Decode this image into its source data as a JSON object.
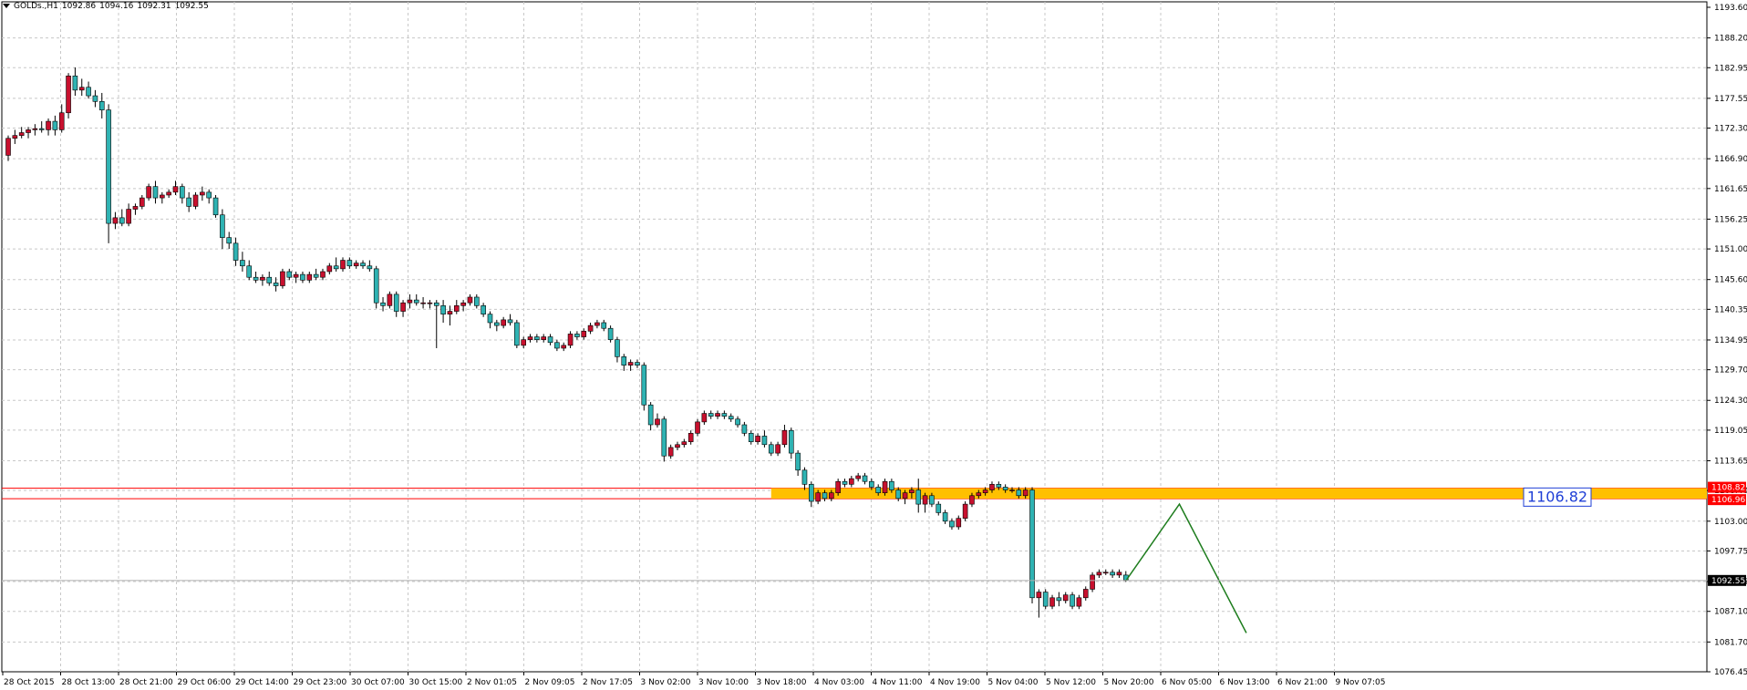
{
  "header": {
    "symbol": "GOLDs.,H1",
    "open": "1092.86",
    "high": "1094.16",
    "low": "1092.31",
    "close": "1092.55"
  },
  "colors": {
    "background": "#ffffff",
    "grid": "#c8c8c8",
    "bull_body": "#c8102e",
    "bear_body": "#2fb3b3",
    "wick": "#000000",
    "zone_fill": "#ffc000",
    "zone_line": "#ff0000",
    "projection": "#1e7d1e",
    "price_tag_bg": "#000000",
    "zone_label": "#1f3fd6"
  },
  "chart_data": {
    "type": "candlestick",
    "title": "GOLDs.,H1",
    "ylim": [
      1076.45,
      1195.0
    ],
    "y_ticks": [
      "1193.60",
      "1188.20",
      "1182.95",
      "1177.55",
      "1172.30",
      "1166.90",
      "1161.65",
      "1156.25",
      "1151.00",
      "1145.60",
      "1140.35",
      "1134.95",
      "1129.70",
      "1124.30",
      "1119.05",
      "1113.65",
      "1108.40",
      "1103.00",
      "1097.75",
      "1092.35",
      "1087.10",
      "1081.70",
      "1076.45"
    ],
    "x_ticks": [
      "28 Oct 2015",
      "28 Oct 13:00",
      "28 Oct 21:00",
      "29 Oct 06:00",
      "29 Oct 14:00",
      "29 Oct 23:00",
      "30 Oct 07:00",
      "30 Oct 15:00",
      "2 Nov 01:05",
      "2 Nov 09:05",
      "2 Nov 17:05",
      "3 Nov 02:00",
      "3 Nov 10:00",
      "3 Nov 18:00",
      "4 Nov 03:00",
      "4 Nov 11:00",
      "4 Nov 19:00",
      "5 Nov 04:00",
      "5 Nov 12:00",
      "5 Nov 20:00",
      "6 Nov 05:00",
      "6 Nov 13:00",
      "6 Nov 21:00",
      "9 Nov 07:05"
    ],
    "current_price": "1092.55",
    "zone": {
      "upper": 1108.82,
      "lower": 1106.96,
      "upper_label": "1108.82",
      "lower_label": "1106.96",
      "label": "1106.82"
    },
    "projection": [
      {
        "bar": 0,
        "price": 1092.5
      },
      {
        "bar": 8,
        "price": 1106.0
      },
      {
        "bar": 18,
        "price": 1083.3
      }
    ],
    "candles": [
      [
        1167.5,
        1171.0,
        1166.5,
        1170.5
      ],
      [
        1170.5,
        1172.0,
        1169.5,
        1171.0
      ],
      [
        1171.0,
        1172.5,
        1170.5,
        1171.5
      ],
      [
        1171.5,
        1172.5,
        1170.5,
        1172.0
      ],
      [
        1172.0,
        1173.0,
        1171.0,
        1172.2
      ],
      [
        1172.2,
        1173.5,
        1171.5,
        1172.0
      ],
      [
        1172.0,
        1174.0,
        1171.0,
        1173.5
      ],
      [
        1173.5,
        1174.5,
        1171.0,
        1172.0
      ],
      [
        1172.0,
        1176.5,
        1171.5,
        1175.0
      ],
      [
        1175.0,
        1182.0,
        1174.0,
        1181.5
      ],
      [
        1181.5,
        1183.0,
        1178.0,
        1179.0
      ],
      [
        1179.0,
        1181.0,
        1178.0,
        1179.5
      ],
      [
        1179.5,
        1180.5,
        1177.5,
        1178.0
      ],
      [
        1178.0,
        1179.0,
        1176.0,
        1177.0
      ],
      [
        1177.0,
        1178.5,
        1174.0,
        1175.5
      ],
      [
        1175.5,
        1176.5,
        1152.0,
        1155.5
      ],
      [
        1155.5,
        1157.5,
        1154.5,
        1156.5
      ],
      [
        1156.5,
        1158.0,
        1155.0,
        1155.5
      ],
      [
        1155.5,
        1159.0,
        1155.0,
        1158.0
      ],
      [
        1158.0,
        1159.0,
        1157.0,
        1158.5
      ],
      [
        1158.5,
        1160.5,
        1158.0,
        1160.0
      ],
      [
        1160.0,
        1162.5,
        1159.5,
        1162.0
      ],
      [
        1162.0,
        1163.0,
        1159.0,
        1160.0
      ],
      [
        1160.0,
        1161.0,
        1159.0,
        1160.5
      ],
      [
        1160.5,
        1161.5,
        1160.0,
        1161.0
      ],
      [
        1161.0,
        1163.0,
        1160.5,
        1162.0
      ],
      [
        1162.0,
        1162.5,
        1159.0,
        1160.0
      ],
      [
        1160.0,
        1161.0,
        1157.5,
        1158.5
      ],
      [
        1158.5,
        1161.0,
        1158.0,
        1160.5
      ],
      [
        1160.5,
        1162.0,
        1159.5,
        1161.0
      ],
      [
        1161.0,
        1161.5,
        1159.0,
        1160.0
      ],
      [
        1160.0,
        1160.5,
        1156.5,
        1157.0
      ],
      [
        1157.0,
        1158.0,
        1151.0,
        1153.0
      ],
      [
        1153.0,
        1154.0,
        1151.0,
        1152.0
      ],
      [
        1152.0,
        1153.0,
        1148.0,
        1149.0
      ],
      [
        1149.0,
        1150.5,
        1147.0,
        1148.0
      ],
      [
        1148.0,
        1149.0,
        1145.5,
        1146.0
      ],
      [
        1146.0,
        1147.0,
        1145.0,
        1145.5
      ],
      [
        1145.5,
        1146.5,
        1144.5,
        1146.0
      ],
      [
        1146.0,
        1147.0,
        1144.5,
        1145.0
      ],
      [
        1145.0,
        1146.0,
        1143.5,
        1144.5
      ],
      [
        1144.5,
        1147.5,
        1144.0,
        1147.0
      ],
      [
        1147.0,
        1147.5,
        1145.5,
        1146.0
      ],
      [
        1146.0,
        1147.0,
        1145.0,
        1146.5
      ],
      [
        1146.5,
        1147.0,
        1145.0,
        1145.5
      ],
      [
        1145.5,
        1147.0,
        1145.0,
        1146.5
      ],
      [
        1146.5,
        1147.5,
        1145.5,
        1146.0
      ],
      [
        1146.0,
        1147.5,
        1145.5,
        1147.0
      ],
      [
        1147.0,
        1148.5,
        1146.5,
        1148.0
      ],
      [
        1148.0,
        1149.5,
        1147.0,
        1147.5
      ],
      [
        1147.5,
        1149.5,
        1147.0,
        1149.0
      ],
      [
        1149.0,
        1149.5,
        1147.5,
        1148.0
      ],
      [
        1148.0,
        1149.0,
        1147.5,
        1148.5
      ],
      [
        1148.5,
        1149.0,
        1147.5,
        1148.0
      ],
      [
        1148.0,
        1149.0,
        1147.0,
        1147.5
      ],
      [
        1147.5,
        1148.0,
        1140.5,
        1141.5
      ],
      [
        1141.5,
        1142.5,
        1140.0,
        1141.0
      ],
      [
        1141.0,
        1143.5,
        1140.5,
        1143.0
      ],
      [
        1143.0,
        1143.5,
        1139.0,
        1140.0
      ],
      [
        1140.0,
        1142.0,
        1139.0,
        1141.5
      ],
      [
        1141.5,
        1143.0,
        1140.5,
        1142.0
      ],
      [
        1142.0,
        1143.0,
        1141.0,
        1141.5
      ],
      [
        1141.5,
        1142.5,
        1140.5,
        1141.5
      ],
      [
        1141.5,
        1142.0,
        1140.5,
        1141.5
      ],
      [
        1141.5,
        1142.0,
        1133.5,
        1141.0
      ],
      [
        1141.0,
        1142.0,
        1138.0,
        1139.5
      ],
      [
        1139.5,
        1141.0,
        1137.5,
        1140.0
      ],
      [
        1140.0,
        1142.0,
        1139.5,
        1141.0
      ],
      [
        1141.0,
        1142.0,
        1140.0,
        1141.5
      ],
      [
        1141.5,
        1143.0,
        1141.0,
        1142.5
      ],
      [
        1142.5,
        1143.0,
        1140.5,
        1141.0
      ],
      [
        1141.0,
        1141.5,
        1139.0,
        1139.5
      ],
      [
        1139.5,
        1140.0,
        1137.0,
        1138.0
      ],
      [
        1138.0,
        1138.5,
        1136.5,
        1137.5
      ],
      [
        1137.5,
        1139.0,
        1137.0,
        1138.5
      ],
      [
        1138.5,
        1139.5,
        1137.5,
        1138.0
      ],
      [
        1138.0,
        1138.5,
        1133.5,
        1134.0
      ],
      [
        1134.0,
        1135.5,
        1133.5,
        1135.0
      ],
      [
        1135.0,
        1136.0,
        1134.5,
        1135.5
      ],
      [
        1135.5,
        1136.0,
        1134.5,
        1135.0
      ],
      [
        1135.0,
        1136.0,
        1134.5,
        1135.5
      ],
      [
        1135.5,
        1136.0,
        1134.0,
        1134.5
      ],
      [
        1134.5,
        1135.0,
        1133.0,
        1133.5
      ],
      [
        1133.5,
        1134.5,
        1133.0,
        1134.0
      ],
      [
        1134.0,
        1136.5,
        1133.5,
        1136.0
      ],
      [
        1136.0,
        1136.5,
        1135.0,
        1135.5
      ],
      [
        1135.5,
        1137.0,
        1135.0,
        1136.5
      ],
      [
        1136.5,
        1138.0,
        1136.0,
        1137.5
      ],
      [
        1137.5,
        1138.5,
        1137.0,
        1138.0
      ],
      [
        1138.0,
        1138.5,
        1136.5,
        1137.0
      ],
      [
        1137.0,
        1137.5,
        1134.5,
        1135.0
      ],
      [
        1135.0,
        1135.5,
        1131.0,
        1132.0
      ],
      [
        1132.0,
        1132.5,
        1129.5,
        1130.5
      ],
      [
        1130.5,
        1131.5,
        1129.5,
        1131.0
      ],
      [
        1131.0,
        1131.5,
        1130.0,
        1130.5
      ],
      [
        1130.5,
        1131.0,
        1122.5,
        1123.5
      ],
      [
        1123.5,
        1124.0,
        1119.0,
        1120.0
      ],
      [
        1120.0,
        1122.0,
        1119.5,
        1121.0
      ],
      [
        1121.0,
        1121.5,
        1113.5,
        1114.5
      ],
      [
        1114.5,
        1116.5,
        1114.0,
        1116.0
      ],
      [
        1116.0,
        1117.0,
        1115.5,
        1116.5
      ],
      [
        1116.5,
        1117.5,
        1116.0,
        1117.0
      ],
      [
        1117.0,
        1119.0,
        1116.5,
        1118.5
      ],
      [
        1118.5,
        1121.0,
        1118.0,
        1120.5
      ],
      [
        1120.5,
        1122.5,
        1120.0,
        1122.0
      ],
      [
        1122.0,
        1122.5,
        1121.0,
        1121.5
      ],
      [
        1121.5,
        1122.5,
        1121.0,
        1122.0
      ],
      [
        1122.0,
        1122.5,
        1121.0,
        1121.5
      ],
      [
        1121.5,
        1122.0,
        1120.5,
        1121.0
      ],
      [
        1121.0,
        1121.5,
        1119.5,
        1120.0
      ],
      [
        1120.0,
        1120.5,
        1118.0,
        1118.5
      ],
      [
        1118.5,
        1119.0,
        1116.5,
        1117.0
      ],
      [
        1117.0,
        1118.5,
        1116.5,
        1118.0
      ],
      [
        1118.0,
        1119.0,
        1116.0,
        1116.5
      ],
      [
        1116.5,
        1117.0,
        1114.5,
        1115.0
      ],
      [
        1115.0,
        1117.0,
        1114.5,
        1116.5
      ],
      [
        1116.5,
        1120.0,
        1116.0,
        1119.0
      ],
      [
        1119.0,
        1119.5,
        1114.0,
        1115.0
      ],
      [
        1115.0,
        1115.5,
        1111.0,
        1112.0
      ],
      [
        1112.0,
        1112.5,
        1108.5,
        1109.5
      ],
      [
        1109.5,
        1110.0,
        1105.5,
        1106.5
      ],
      [
        1106.5,
        1108.5,
        1106.0,
        1108.0
      ],
      [
        1108.0,
        1108.5,
        1106.5,
        1107.0
      ],
      [
        1107.0,
        1108.5,
        1106.5,
        1108.0
      ],
      [
        1108.0,
        1110.5,
        1107.5,
        1110.0
      ],
      [
        1110.0,
        1110.5,
        1109.0,
        1109.5
      ],
      [
        1109.5,
        1111.0,
        1109.0,
        1110.5
      ],
      [
        1110.5,
        1111.5,
        1110.0,
        1111.0
      ],
      [
        1111.0,
        1111.5,
        1109.5,
        1110.0
      ],
      [
        1110.0,
        1110.5,
        1108.5,
        1109.0
      ],
      [
        1109.0,
        1109.5,
        1107.5,
        1108.0
      ],
      [
        1108.0,
        1110.5,
        1107.5,
        1110.0
      ],
      [
        1110.0,
        1110.5,
        1108.0,
        1108.5
      ],
      [
        1108.5,
        1109.0,
        1106.5,
        1107.0
      ],
      [
        1107.0,
        1108.5,
        1106.0,
        1108.0
      ],
      [
        1108.0,
        1109.0,
        1107.0,
        1108.5
      ],
      [
        1108.5,
        1110.5,
        1104.5,
        1106.0
      ],
      [
        1106.0,
        1108.0,
        1104.5,
        1107.5
      ],
      [
        1107.5,
        1108.0,
        1105.5,
        1106.0
      ],
      [
        1106.0,
        1106.5,
        1104.0,
        1104.5
      ],
      [
        1104.5,
        1105.0,
        1102.5,
        1103.0
      ],
      [
        1103.0,
        1103.5,
        1101.5,
        1102.0
      ],
      [
        1102.0,
        1104.0,
        1101.5,
        1103.5
      ],
      [
        1103.5,
        1106.5,
        1103.0,
        1106.0
      ],
      [
        1106.0,
        1108.0,
        1105.5,
        1107.5
      ],
      [
        1107.5,
        1108.5,
        1107.0,
        1108.0
      ],
      [
        1108.0,
        1109.0,
        1107.5,
        1108.5
      ],
      [
        1108.5,
        1110.0,
        1108.0,
        1109.5
      ],
      [
        1109.5,
        1110.0,
        1108.5,
        1109.0
      ],
      [
        1109.0,
        1109.5,
        1108.0,
        1108.5
      ],
      [
        1108.5,
        1109.0,
        1108.0,
        1108.5
      ],
      [
        1108.5,
        1109.0,
        1107.0,
        1107.5
      ],
      [
        1107.5,
        1109.0,
        1107.0,
        1108.5
      ],
      [
        1108.5,
        1109.0,
        1088.5,
        1089.5
      ],
      [
        1089.5,
        1091.0,
        1086.0,
        1090.5
      ],
      [
        1090.5,
        1091.0,
        1087.5,
        1088.0
      ],
      [
        1088.0,
        1090.0,
        1087.5,
        1089.5
      ],
      [
        1089.5,
        1090.5,
        1088.0,
        1089.0
      ],
      [
        1089.0,
        1090.5,
        1088.5,
        1090.0
      ],
      [
        1090.0,
        1090.5,
        1087.5,
        1088.0
      ],
      [
        1088.0,
        1090.0,
        1087.5,
        1089.5
      ],
      [
        1089.5,
        1091.5,
        1089.0,
        1091.0
      ],
      [
        1091.0,
        1094.0,
        1090.5,
        1093.5
      ],
      [
        1093.5,
        1094.5,
        1093.0,
        1094.0
      ],
      [
        1094.0,
        1094.5,
        1093.5,
        1094.0
      ],
      [
        1094.0,
        1094.5,
        1093.0,
        1093.5
      ],
      [
        1093.5,
        1094.5,
        1093.0,
        1094.0
      ],
      [
        1093.5,
        1094.2,
        1092.3,
        1092.6
      ]
    ]
  }
}
